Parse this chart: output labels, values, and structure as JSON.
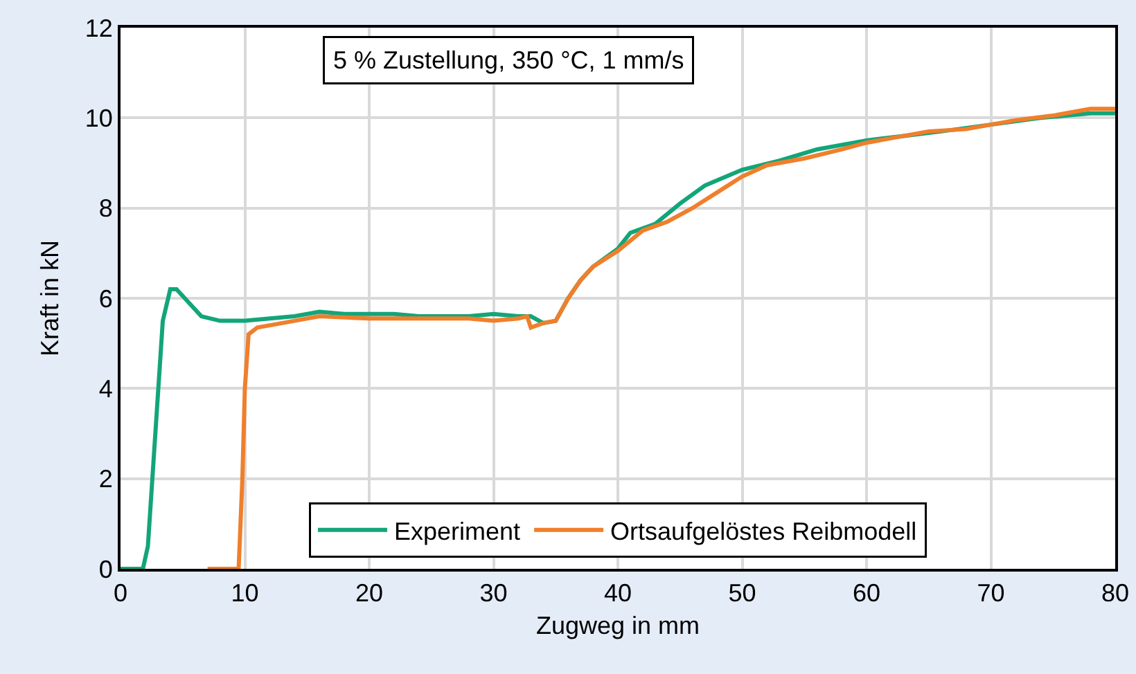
{
  "chart_data": {
    "type": "line",
    "xlabel": "Zugweg in mm",
    "ylabel": "Kraft in kN",
    "annotations": [
      "5 % Zustellung, 350 °C, 1 mm/s"
    ],
    "xlim": [
      0,
      80
    ],
    "xticks": [
      0,
      10,
      20,
      30,
      40,
      50,
      60,
      70,
      80
    ],
    "ylim": [
      0,
      12
    ],
    "yticks": [
      0,
      2,
      4,
      6,
      8,
      10,
      12
    ],
    "grid": true,
    "legend": "bottom",
    "marker": "none",
    "line_style": "solid",
    "series": [
      {
        "name": "Experiment",
        "color": "#13a57a",
        "x": [
          0,
          1.8,
          2.2,
          2.8,
          3.4,
          4,
          4.5,
          5.5,
          6.5,
          8,
          10,
          12,
          14,
          16,
          18,
          20,
          22,
          24,
          26,
          28,
          30,
          32,
          33,
          34,
          35,
          36,
          37,
          38,
          40,
          41,
          43,
          45,
          47,
          50,
          53,
          56,
          60,
          63,
          66,
          70,
          74,
          78,
          80
        ],
        "values": [
          0,
          0,
          0.5,
          3,
          5.5,
          6.2,
          6.2,
          5.9,
          5.6,
          5.5,
          5.5,
          5.55,
          5.6,
          5.7,
          5.65,
          5.65,
          5.65,
          5.6,
          5.6,
          5.6,
          5.65,
          5.6,
          5.6,
          5.45,
          5.5,
          6.0,
          6.4,
          6.7,
          7.1,
          7.45,
          7.65,
          8.1,
          8.5,
          8.85,
          9.05,
          9.3,
          9.5,
          9.6,
          9.7,
          9.85,
          10.0,
          10.1,
          10.1
        ]
      },
      {
        "name": "Ortsaufgelöstes Reibmodell",
        "color": "#f07f2c",
        "x": [
          7,
          9.5,
          9.8,
          10,
          10.3,
          11,
          12,
          14,
          16,
          20,
          24,
          28,
          30,
          32,
          32.7,
          33,
          34,
          35,
          36,
          37,
          38,
          40,
          42,
          44,
          46,
          48,
          50,
          52,
          55,
          58,
          60,
          63,
          65,
          68,
          72,
          75,
          78,
          80
        ],
        "values": [
          0,
          0,
          2,
          4,
          5.2,
          5.35,
          5.4,
          5.5,
          5.6,
          5.55,
          5.55,
          5.55,
          5.5,
          5.55,
          5.6,
          5.35,
          5.45,
          5.5,
          6.0,
          6.4,
          6.7,
          7.05,
          7.5,
          7.7,
          8.0,
          8.35,
          8.7,
          8.95,
          9.1,
          9.3,
          9.45,
          9.6,
          9.7,
          9.75,
          9.95,
          10.05,
          10.2,
          10.2
        ]
      }
    ]
  }
}
